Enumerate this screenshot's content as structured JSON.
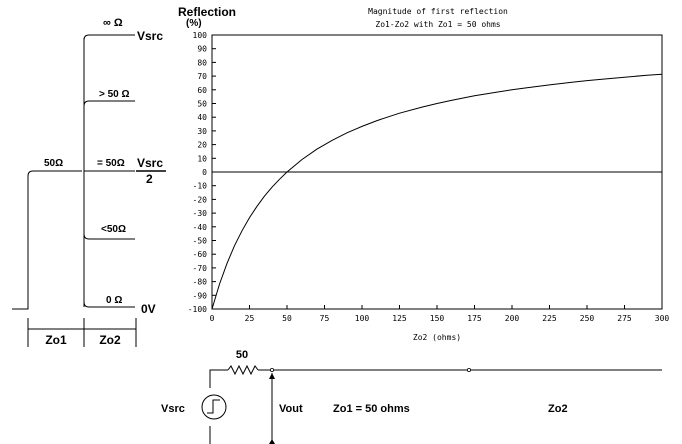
{
  "chart_data": {
    "type": "line",
    "title": "Magnitude of first reflection",
    "subtitle": "Zo1-Zo2 with Zo1 = 50 ohms",
    "ylabel": "Reflection",
    "ylabel_unit": "(%)",
    "xlabel": "Zo2 (ohms)",
    "xlim": [
      0,
      300
    ],
    "ylim": [
      -100,
      100
    ],
    "x_ticks": [
      0,
      25,
      50,
      75,
      100,
      125,
      150,
      175,
      200,
      225,
      250,
      275,
      300
    ],
    "y_ticks": [
      100,
      90,
      80,
      70,
      60,
      50,
      40,
      30,
      20,
      10,
      0,
      -10,
      -20,
      -30,
      -40,
      -50,
      -60,
      -70,
      -80,
      -90,
      -100
    ],
    "grid": false,
    "series": [
      {
        "x": [
          0,
          5,
          10,
          15,
          20,
          25,
          30,
          35,
          40,
          45,
          50,
          60,
          70,
          80,
          90,
          100,
          110,
          125,
          140,
          150,
          160,
          175,
          190,
          200,
          210,
          225,
          240,
          250,
          260,
          275,
          290,
          300
        ],
        "values": [
          -100,
          -81.8,
          -66.7,
          -53.8,
          -42.9,
          -33.3,
          -25,
          -17.6,
          -11.1,
          -5.3,
          0,
          9.1,
          16.7,
          23.1,
          28.6,
          33.3,
          37.5,
          42.9,
          47.4,
          50,
          52.4,
          55.6,
          58.3,
          60,
          61.5,
          63.6,
          65.5,
          66.7,
          67.7,
          69.2,
          70.6,
          71.4
        ]
      }
    ]
  },
  "tdr_diagram": {
    "levels": {
      "open": "∞ Ω",
      "greater": "> 50 Ω",
      "equal": "= 50Ω",
      "less": "<50Ω",
      "short": "0 Ω",
      "left": "50Ω"
    },
    "voltages": {
      "top": "Vsrc",
      "mid_num": "Vsrc",
      "mid_den": "2",
      "bottom": "0V"
    },
    "segments": [
      "Zo1",
      "Zo2"
    ]
  },
  "circuit": {
    "resistor": "50",
    "source": "Vsrc",
    "vout": "Vout",
    "line1": "Zo1 = 50 ohms",
    "line2": "Zo2"
  }
}
